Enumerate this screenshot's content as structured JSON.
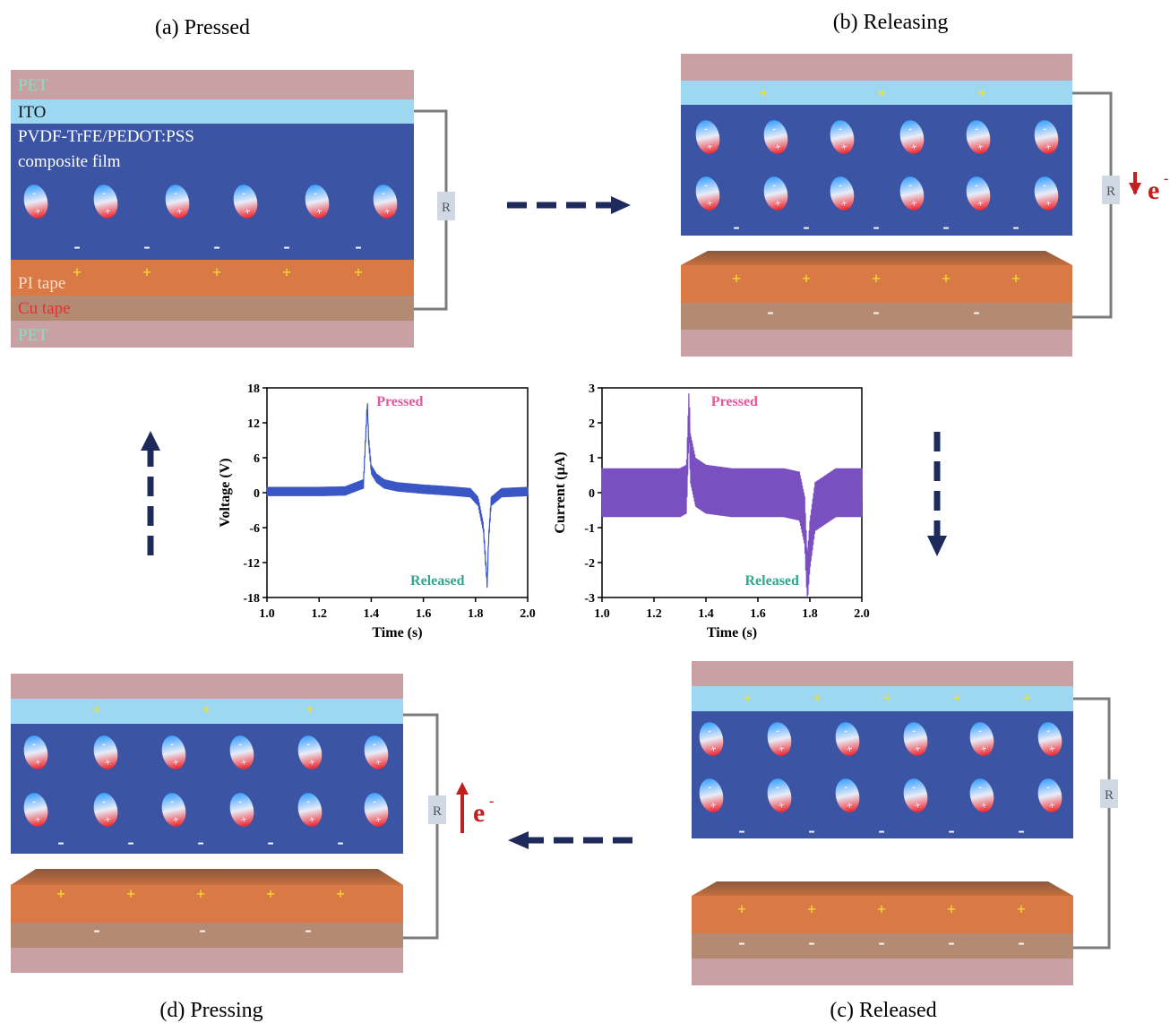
{
  "panels": {
    "a": {
      "title": "(a) Pressed",
      "labels": {
        "pet_top": "PET",
        "ito": "ITO",
        "composite_line1": "PVDF-TrFE/PEDOT:PSS",
        "composite_line2": "composite film",
        "pi": "PI tape",
        "cu": "Cu tape",
        "pet_bottom": "PET"
      },
      "resistor": "R"
    },
    "b": {
      "title": "(b) Releasing",
      "resistor": "R",
      "electron": "e",
      "electron_sup": "-"
    },
    "c": {
      "title": "(c) Released",
      "resistor": "R"
    },
    "d": {
      "title": "(d) Pressing",
      "resistor": "R",
      "electron": "e",
      "electron_sup": "-"
    }
  },
  "symbols": {
    "plus": "+",
    "minus": "-"
  },
  "colors": {
    "pet": "#c9a1a4",
    "ito": "#9dd8f3",
    "composite": "#3b54a4",
    "pi": "#d97a46",
    "cu": "#b58a73",
    "positive": "#f0e02a",
    "negative": "#ffffff",
    "wire": "#7c7c7c",
    "arrow": "#1f2a5c",
    "electron": "#c21f1f",
    "pet_label": "#7fe3c0",
    "cu_label": "#e23131",
    "voltage_line": "#3a56c4",
    "current_line": "#7a4fc0",
    "pressed_text": "#e8559a",
    "released_text": "#2ea88f"
  },
  "chart_data": [
    {
      "type": "line",
      "title": "",
      "xlabel": "Time (s)",
      "ylabel": "Voltage (V)",
      "xlim": [
        1.0,
        2.0
      ],
      "ylim": [
        -18,
        18
      ],
      "xticks": [
        "1.0",
        "1.2",
        "1.4",
        "1.6",
        "1.8",
        "2.0"
      ],
      "yticks": [
        "18",
        "12",
        "6",
        "0",
        "-6",
        "-12",
        "-18"
      ],
      "annotations": [
        "Pressed",
        "Released"
      ],
      "x": [
        1.0,
        1.1,
        1.2,
        1.3,
        1.37,
        1.385,
        1.39,
        1.4,
        1.42,
        1.45,
        1.5,
        1.6,
        1.7,
        1.78,
        1.81,
        1.83,
        1.845,
        1.85,
        1.86,
        1.9,
        2.0
      ],
      "y": [
        0.2,
        0.2,
        0.2,
        0.3,
        1.5,
        15.5,
        9.0,
        4.0,
        2.5,
        1.5,
        1.0,
        0.6,
        0.3,
        0.0,
        -1.5,
        -6.0,
        -16.0,
        -8.0,
        -1.5,
        0.0,
        0.2
      ],
      "noise_amplitude": 0.8
    },
    {
      "type": "line",
      "title": "",
      "xlabel": "Time (s)",
      "ylabel": "Current (µA)",
      "xlim": [
        1.0,
        2.0
      ],
      "ylim": [
        -3,
        3
      ],
      "xticks": [
        "1.0",
        "1.2",
        "1.4",
        "1.6",
        "1.8",
        "2.0"
      ],
      "yticks": [
        "3",
        "2",
        "1",
        "0",
        "-1",
        "-2",
        "-3"
      ],
      "annotations": [
        "Pressed",
        "Released"
      ],
      "x": [
        1.0,
        1.1,
        1.2,
        1.3,
        1.325,
        1.335,
        1.34,
        1.36,
        1.4,
        1.5,
        1.6,
        1.7,
        1.76,
        1.78,
        1.79,
        1.8,
        1.82,
        1.9,
        2.0
      ],
      "y": [
        0.0,
        0.0,
        0.0,
        0.0,
        0.1,
        2.3,
        1.0,
        0.3,
        0.1,
        0.0,
        0.0,
        0.0,
        -0.1,
        -0.8,
        -2.5,
        -1.5,
        -0.4,
        0.0,
        0.0
      ],
      "noise_amplitude": 0.7
    }
  ]
}
